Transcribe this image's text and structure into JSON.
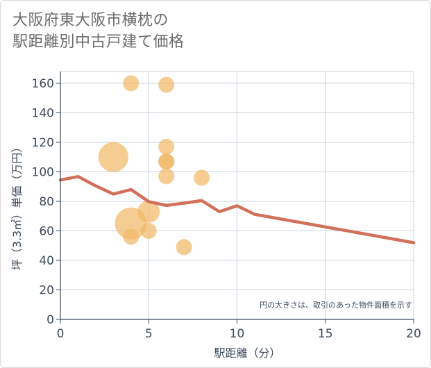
{
  "title_lines": [
    "大阪府東大阪市横枕の",
    "駅距離別中古戸建て価格"
  ],
  "chart_data": {
    "type": "scatter",
    "title": "大阪府東大阪市横枕の駅距離別中古戸建て価格",
    "xlabel": "駅距離（分）",
    "ylabel": "坪（3.3㎡）単価（万円）",
    "xlim": [
      0,
      20
    ],
    "ylim": [
      0,
      168
    ],
    "xticks": [
      0,
      5,
      10,
      15,
      20
    ],
    "yticks": [
      0,
      20,
      40,
      60,
      80,
      100,
      120,
      140,
      160
    ],
    "grid": true,
    "note": "円の大きさは、取引のあった物件面積を示す",
    "colors": {
      "bubble": "#f1b865",
      "line": "#d2705c",
      "grid": "#c9d4e0",
      "text": "#3d4b5c"
    },
    "bubbles": [
      {
        "x": 4,
        "y": 160,
        "size": 1
      },
      {
        "x": 6,
        "y": 159,
        "size": 1
      },
      {
        "x": 6,
        "y": 117,
        "size": 1
      },
      {
        "x": 6,
        "y": 107,
        "size": 1
      },
      {
        "x": 6,
        "y": 107,
        "size": 1
      },
      {
        "x": 3,
        "y": 110,
        "size": 5
      },
      {
        "x": 6,
        "y": 97,
        "size": 1
      },
      {
        "x": 8,
        "y": 96,
        "size": 1
      },
      {
        "x": 5,
        "y": 73,
        "size": 2
      },
      {
        "x": 4,
        "y": 65,
        "size": 6
      },
      {
        "x": 5,
        "y": 60,
        "size": 1
      },
      {
        "x": 4,
        "y": 56,
        "size": 1
      },
      {
        "x": 7,
        "y": 49,
        "size": 1
      }
    ],
    "trend_line": {
      "x": [
        0,
        1,
        2,
        3,
        4,
        5,
        6,
        7,
        8,
        9,
        10,
        11,
        20
      ],
      "y": [
        94.5,
        96.8,
        90.5,
        85,
        88,
        79.8,
        77.2,
        78.8,
        80.5,
        73,
        77,
        71.2,
        52
      ]
    }
  }
}
